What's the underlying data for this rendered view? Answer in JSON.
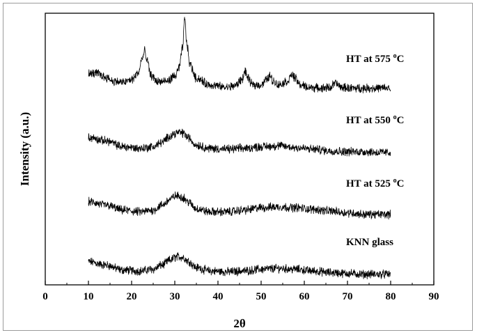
{
  "chart_data": {
    "type": "line",
    "title": "",
    "xlabel": "2θ",
    "ylabel": "Intensity (a.u.)",
    "xlim": [
      0,
      90
    ],
    "x_ticks": [
      "0",
      "10",
      "20",
      "30",
      "40",
      "50",
      "60",
      "70",
      "80",
      "90"
    ],
    "y_ticks_shown": false,
    "grid": false,
    "legend": "none (labels placed next to each curve)",
    "series": [
      {
        "name": "KNN glass",
        "label_main": "KNN glass",
        "label_sup": "",
        "label_tail": "",
        "x": [
          10,
          14,
          18,
          22,
          25,
          27,
          29,
          30,
          31,
          32,
          33,
          35,
          38,
          42,
          46,
          50,
          54,
          58,
          62,
          66,
          70,
          74,
          78,
          80
        ],
        "value": [
          0.16,
          0.12,
          0.06,
          0.05,
          0.07,
          0.12,
          0.18,
          0.21,
          0.22,
          0.21,
          0.17,
          0.09,
          0.05,
          0.04,
          0.05,
          0.07,
          0.08,
          0.07,
          0.05,
          0.03,
          0.02,
          0.01,
          0.01,
          0.01
        ]
      },
      {
        "name": "HT at 525 °C",
        "label_main": "HT at 525",
        "label_sup": "o",
        "label_tail": "C",
        "x": [
          10,
          14,
          18,
          22,
          25,
          27,
          29,
          30,
          31,
          32,
          33,
          35,
          38,
          42,
          46,
          50,
          54,
          58,
          62,
          66,
          70,
          74,
          78,
          80
        ],
        "value": [
          0.16,
          0.12,
          0.06,
          0.04,
          0.06,
          0.12,
          0.19,
          0.23,
          0.23,
          0.21,
          0.16,
          0.08,
          0.04,
          0.04,
          0.06,
          0.09,
          0.1,
          0.09,
          0.07,
          0.05,
          0.03,
          0.01,
          0.01,
          0.01
        ]
      },
      {
        "name": "HT at 550 °C",
        "label_main": "HT at 550",
        "label_sup": "o",
        "label_tail": "C",
        "x": [
          10,
          14,
          18,
          22,
          25,
          27,
          29,
          30,
          31,
          32,
          33,
          35,
          38,
          42,
          46,
          50,
          54,
          58,
          62,
          66,
          70,
          74,
          78,
          80
        ],
        "value": [
          0.18,
          0.14,
          0.07,
          0.05,
          0.07,
          0.12,
          0.2,
          0.23,
          0.24,
          0.23,
          0.18,
          0.09,
          0.05,
          0.04,
          0.05,
          0.07,
          0.08,
          0.06,
          0.04,
          0.02,
          0.01,
          0.01,
          0.0,
          0.0
        ]
      },
      {
        "name": "HT at 575 °C",
        "label_main": "HT at 575",
        "label_sup": "o",
        "label_tail": "C",
        "x": [
          10,
          12,
          14,
          16,
          18,
          20,
          21.5,
          22.5,
          23,
          23.5,
          24.5,
          26,
          28,
          30,
          31,
          31.8,
          32.3,
          32.8,
          33.5,
          35,
          38,
          42,
          44,
          45.5,
          46.3,
          47,
          48,
          50,
          51.3,
          52,
          52.7,
          54,
          56,
          57.2,
          58,
          59,
          61,
          64,
          66,
          67.2,
          68.5,
          71,
          74,
          77,
          80
        ],
        "value": [
          0.19,
          0.2,
          0.15,
          0.1,
          0.09,
          0.12,
          0.2,
          0.38,
          0.46,
          0.36,
          0.17,
          0.1,
          0.1,
          0.16,
          0.26,
          0.5,
          0.85,
          0.55,
          0.3,
          0.14,
          0.06,
          0.03,
          0.05,
          0.12,
          0.22,
          0.13,
          0.06,
          0.06,
          0.12,
          0.17,
          0.11,
          0.06,
          0.1,
          0.18,
          0.13,
          0.06,
          0.03,
          0.02,
          0.03,
          0.08,
          0.03,
          0.02,
          0.02,
          0.02,
          0.02
        ]
      }
    ]
  }
}
